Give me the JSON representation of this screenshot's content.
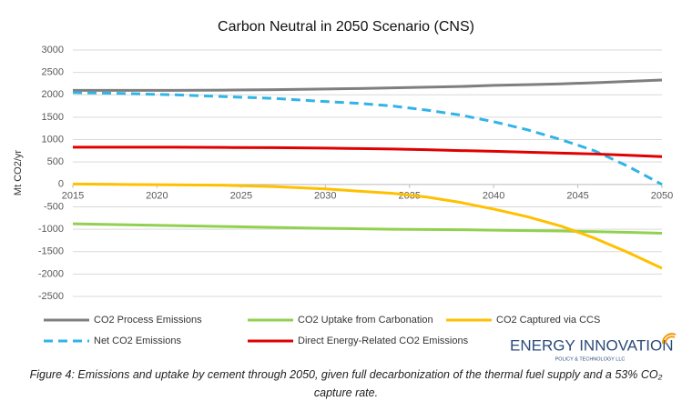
{
  "chart_data": {
    "type": "line",
    "title": "Carbon Neutral in 2050 Scenario (CNS)",
    "y_label": "Mt CO2/yr",
    "x": [
      2015,
      2018,
      2021,
      2024,
      2027,
      2030,
      2032,
      2034,
      2036,
      2038,
      2040,
      2042,
      2044,
      2046,
      2048,
      2050
    ],
    "series": [
      {
        "name": "CO2 Process Emissions",
        "color": "#7f7f7f",
        "dashed": false,
        "values": [
          2100,
          2100,
          2100,
          2105,
          2115,
          2130,
          2140,
          2155,
          2170,
          2185,
          2210,
          2225,
          2245,
          2270,
          2300,
          2330
        ]
      },
      {
        "name": "CO2 Uptake from Carbonation",
        "color": "#92d050",
        "dashed": false,
        "values": [
          -880,
          -900,
          -920,
          -940,
          -960,
          -980,
          -990,
          -1000,
          -1005,
          -1010,
          -1020,
          -1030,
          -1040,
          -1055,
          -1070,
          -1090
        ]
      },
      {
        "name": "CO2 Captured via CCS",
        "color": "#ffc000",
        "dashed": false,
        "values": [
          10,
          0,
          -10,
          -20,
          -50,
          -100,
          -150,
          -200,
          -280,
          -400,
          -550,
          -720,
          -930,
          -1200,
          -1520,
          -1870
        ]
      },
      {
        "name": "Net CO2 Emissions",
        "color": "#31b4e6",
        "dashed": true,
        "values": [
          2050,
          2030,
          2000,
          1960,
          1920,
          1850,
          1810,
          1750,
          1660,
          1550,
          1400,
          1220,
          1000,
          750,
          400,
          0
        ]
      },
      {
        "name": "Direct Energy-Related CO2 Emissions",
        "color": "#e00000",
        "dashed": false,
        "values": [
          830,
          830,
          830,
          825,
          820,
          810,
          800,
          790,
          775,
          755,
          740,
          720,
          700,
          680,
          650,
          620
        ]
      }
    ],
    "xlim": [
      2015,
      2050
    ],
    "xticks": [
      2015,
      2020,
      2025,
      2030,
      2035,
      2040,
      2045,
      2050
    ],
    "ylim": [
      -2500,
      3000
    ],
    "yticks": [
      -2500,
      -2000,
      -1500,
      -1000,
      -500,
      0,
      500,
      1000,
      1500,
      2000,
      2500,
      3000
    ],
    "grid": true
  },
  "logo": {
    "name": "ENERGY INNOVATION",
    "tagline": "POLICY & TECHNOLOGY LLC"
  },
  "caption": "Figure 4: Emissions and uptake by cement through 2050, given full decarbonization of the thermal fuel supply and a 53% CO₂ capture rate."
}
